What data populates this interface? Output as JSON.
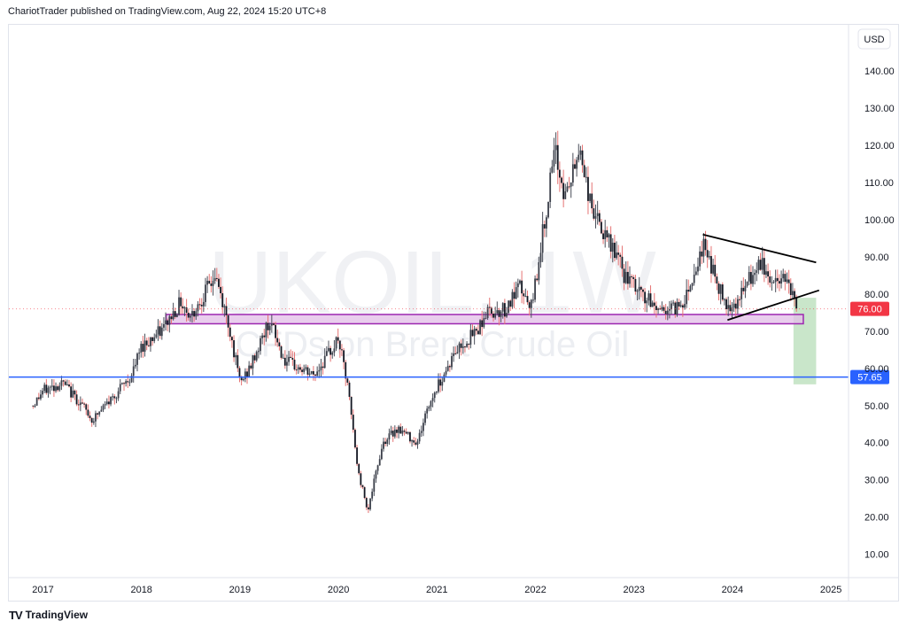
{
  "header": {
    "publisher": "ChariotTrader published on TradingView.com, Aug 22, 2024 15:20 UTC+8"
  },
  "watermark": {
    "symbol": "UKOIL, 1W",
    "description": "CFDs on Brent Crude Oil"
  },
  "currency": "USD",
  "footer": {
    "logo_text": "TV",
    "brand": "TradingView"
  },
  "colors": {
    "up": "#089981",
    "down": "#f23645",
    "candle": "#131722",
    "zone_fill": "#e1bee7",
    "zone_border": "#9c27b0",
    "support": "#2962ff",
    "target": "#a5d6a7"
  },
  "chart_data": {
    "type": "candlestick",
    "symbol": "UKOIL",
    "timeframe": "1W",
    "ylim": [
      0,
      145
    ],
    "y_ticks": [
      "10.00",
      "20.00",
      "30.00",
      "40.00",
      "50.00",
      "60.00",
      "70.00",
      "80.00",
      "90.00",
      "100.00",
      "110.00",
      "120.00",
      "130.00",
      "140.00"
    ],
    "x_ticks": [
      "2017",
      "2018",
      "2019",
      "2020",
      "2021",
      "2022",
      "2023",
      "2024",
      "2025"
    ],
    "price_path": [
      [
        2016.9,
        50
      ],
      [
        2017.0,
        54
      ],
      [
        2017.2,
        56
      ],
      [
        2017.4,
        50
      ],
      [
        2017.5,
        46
      ],
      [
        2017.7,
        52
      ],
      [
        2017.9,
        58
      ],
      [
        2018.0,
        66
      ],
      [
        2018.2,
        70
      ],
      [
        2018.4,
        78
      ],
      [
        2018.5,
        74
      ],
      [
        2018.75,
        85
      ],
      [
        2018.9,
        70
      ],
      [
        2019.0,
        56
      ],
      [
        2019.1,
        60
      ],
      [
        2019.3,
        73
      ],
      [
        2019.45,
        62
      ],
      [
        2019.6,
        60
      ],
      [
        2019.75,
        58
      ],
      [
        2019.9,
        64
      ],
      [
        2020.0,
        68
      ],
      [
        2020.1,
        54
      ],
      [
        2020.2,
        32
      ],
      [
        2020.3,
        22
      ],
      [
        2020.45,
        40
      ],
      [
        2020.6,
        44
      ],
      [
        2020.8,
        40
      ],
      [
        2020.9,
        49
      ],
      [
        2021.0,
        55
      ],
      [
        2021.2,
        65
      ],
      [
        2021.4,
        70
      ],
      [
        2021.5,
        75
      ],
      [
        2021.7,
        76
      ],
      [
        2021.85,
        82
      ],
      [
        2021.95,
        75
      ],
      [
        2022.05,
        92
      ],
      [
        2022.15,
        110
      ],
      [
        2022.2,
        118
      ],
      [
        2022.3,
        106
      ],
      [
        2022.4,
        114
      ],
      [
        2022.45,
        120
      ],
      [
        2022.55,
        105
      ],
      [
        2022.7,
        95
      ],
      [
        2022.8,
        92
      ],
      [
        2022.9,
        85
      ],
      [
        2023.0,
        82
      ],
      [
        2023.15,
        78
      ],
      [
        2023.25,
        76
      ],
      [
        2023.4,
        76
      ],
      [
        2023.5,
        78
      ],
      [
        2023.6,
        85
      ],
      [
        2023.7,
        93
      ],
      [
        2023.75,
        91
      ],
      [
        2023.85,
        82
      ],
      [
        2023.95,
        77
      ],
      [
        2024.05,
        78
      ],
      [
        2024.15,
        83
      ],
      [
        2024.3,
        88
      ],
      [
        2024.4,
        83
      ],
      [
        2024.5,
        84
      ],
      [
        2024.55,
        86
      ],
      [
        2024.62,
        79
      ],
      [
        2024.65,
        76
      ]
    ],
    "levels": [
      {
        "type": "zone",
        "from": 72,
        "to": 74.5,
        "x_start": 2018.25,
        "x_end": 2024.72
      },
      {
        "type": "support",
        "price": 57.65,
        "label": "57.65"
      },
      {
        "type": "current",
        "price": 76.0,
        "label": "76.00"
      },
      {
        "type": "target_box",
        "from": 55.7,
        "to": 79.0,
        "x_start": 2024.62,
        "x_end": 2024.85
      }
    ],
    "trendlines": [
      {
        "from": [
          2023.7,
          96
        ],
        "to": [
          2024.85,
          88.5
        ]
      },
      {
        "from": [
          2023.95,
          73
        ],
        "to": [
          2024.88,
          81
        ]
      }
    ]
  }
}
